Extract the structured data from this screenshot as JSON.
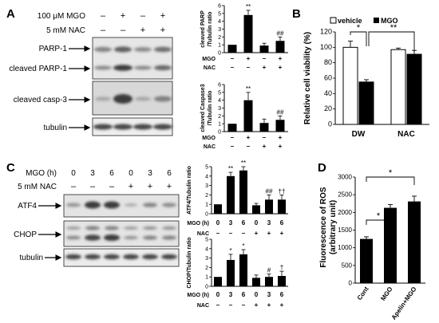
{
  "panels": {
    "A": {
      "letter": "A",
      "treatments": [
        {
          "label": "100 μM MGO",
          "signs": [
            "–",
            "+",
            "–",
            "+"
          ]
        },
        {
          "label": "5 mM NAC",
          "signs": [
            "–",
            "–",
            "+",
            "+"
          ]
        }
      ],
      "blot_labels": [
        "PARP-1",
        "cleaved PARP-1",
        "cleaved casp-3",
        "tubulin"
      ]
    },
    "B": {
      "letter": "B"
    },
    "C": {
      "letter": "C",
      "treatments": [
        {
          "label": "MGO (h)",
          "signs": [
            "0",
            "3",
            "6",
            "0",
            "3",
            "6"
          ]
        },
        {
          "label": "5 mM NAC",
          "signs": [
            "–",
            "–",
            "–",
            "+",
            "+",
            "+"
          ]
        }
      ],
      "blot_labels": [
        "ATF4",
        "CHOP",
        "tubulin"
      ]
    },
    "D": {
      "letter": "D"
    }
  },
  "chart_data": [
    {
      "id": "A_parp",
      "type": "bar",
      "ylabel": "cleaved PARP /Tubulin ratio",
      "ylim": [
        0,
        6
      ],
      "yticks": [
        "0",
        "1",
        "2",
        "3",
        "4",
        "5",
        "6"
      ],
      "values": [
        1.0,
        4.8,
        0.9,
        1.5
      ],
      "errors": [
        0.0,
        0.6,
        0.3,
        0.5
      ],
      "annotations": [
        "",
        "**",
        "",
        "##"
      ],
      "rows": [
        {
          "label": "MGO",
          "signs": [
            "–",
            "+",
            "–",
            "+"
          ]
        },
        {
          "label": "NAC",
          "signs": [
            "–",
            "–",
            "+",
            "+"
          ]
        }
      ]
    },
    {
      "id": "A_casp",
      "type": "bar",
      "ylabel": "cleaved Caspase3 /Tubulin ratio",
      "ylim": [
        0,
        6
      ],
      "yticks": [
        "0",
        "1",
        "2",
        "3",
        "4",
        "5",
        "6"
      ],
      "values": [
        1.0,
        4.0,
        1.1,
        1.5
      ],
      "errors": [
        0.0,
        1.0,
        0.5,
        0.5
      ],
      "annotations": [
        "",
        "**",
        "",
        "##"
      ],
      "rows": [
        {
          "label": "MGO",
          "signs": [
            "–",
            "+",
            "–",
            "+"
          ]
        },
        {
          "label": "NAC",
          "signs": [
            "–",
            "–",
            "+",
            "+"
          ]
        }
      ]
    },
    {
      "id": "B",
      "type": "bar",
      "ylabel": "Relative cell viability (%)",
      "ylim": [
        0,
        120
      ],
      "yticks": [
        "0",
        "20",
        "40",
        "60",
        "80",
        "100",
        "120"
      ],
      "categories": [
        "DW",
        "NAC"
      ],
      "series": [
        {
          "name": "vehicle",
          "values": [
            100,
            97
          ],
          "errors": [
            8,
            2
          ],
          "color": "#ffffff"
        },
        {
          "name": "MGO",
          "values": [
            55,
            91
          ],
          "errors": [
            3,
            5
          ],
          "color": "#000000"
        }
      ],
      "annotations": [
        "*",
        "**"
      ],
      "legend": "top"
    },
    {
      "id": "C_atf4",
      "type": "bar",
      "ylabel": "ATF4/Tubulin ratio",
      "ylim": [
        0,
        5
      ],
      "yticks": [
        "0",
        "1",
        "2",
        "3",
        "4",
        "5"
      ],
      "values": [
        1.0,
        4.0,
        4.6,
        0.9,
        1.5,
        1.5
      ],
      "errors": [
        0.0,
        0.4,
        0.4,
        0.2,
        0.5,
        0.5
      ],
      "annotations": [
        "",
        "**",
        "**",
        "",
        "##",
        "††"
      ],
      "rows": [
        {
          "label": "MGO (h)",
          "signs": [
            "0",
            "3",
            "6",
            "0",
            "3",
            "6"
          ]
        },
        {
          "label": "NAC",
          "signs": [
            "–",
            "–",
            "–",
            "+",
            "+",
            "+"
          ]
        }
      ]
    },
    {
      "id": "C_chop",
      "type": "bar",
      "ylabel": "CHOP/Tubulin ratio",
      "ylim": [
        0,
        5
      ],
      "yticks": [
        "0",
        "1",
        "2",
        "3",
        "4",
        "5"
      ],
      "values": [
        1.0,
        2.8,
        3.4,
        0.9,
        1.0,
        1.1
      ],
      "errors": [
        0.0,
        0.6,
        0.5,
        0.3,
        0.3,
        0.5
      ],
      "annotations": [
        "",
        "*",
        "*",
        "",
        "#",
        "†"
      ],
      "rows": [
        {
          "label": "MGO (h)",
          "signs": [
            "0",
            "3",
            "6",
            "0",
            "3",
            "6"
          ]
        },
        {
          "label": "NAC",
          "signs": [
            "–",
            "–",
            "–",
            "+",
            "+",
            "+"
          ]
        }
      ]
    },
    {
      "id": "D",
      "type": "bar",
      "ylabel": "Fluorescence of ROS (arbitrary unit)",
      "ylim": [
        0,
        3000
      ],
      "yticks": [
        "0",
        "500",
        "1000",
        "1500",
        "2000",
        "2500",
        "3000"
      ],
      "categories": [
        "Cont",
        "MGO",
        "Apelin+MGO"
      ],
      "values": [
        1250,
        2130,
        2310
      ],
      "errors": [
        60,
        90,
        150
      ],
      "annotations": [
        "*",
        "*"
      ]
    }
  ]
}
